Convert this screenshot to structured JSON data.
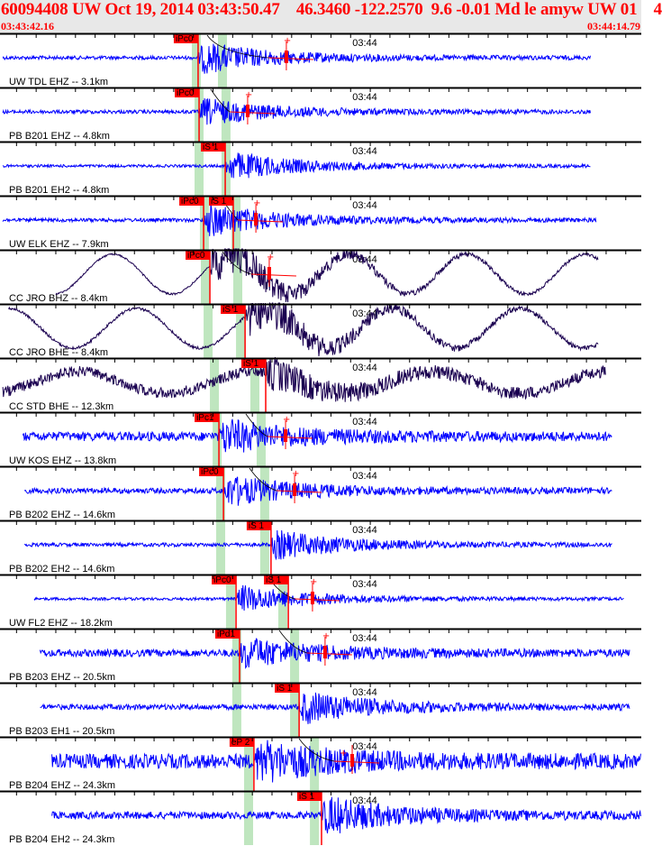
{
  "header": {
    "title": "60094408 UW Oct 19, 2014 03:43:50.47    46.3460 -122.2570  9.6 -0.01 Md le amyw UW 01    4",
    "start_time": "03:43:42.16",
    "end_time": "03:44:14.79"
  },
  "chart_data": {
    "type": "line",
    "title": "",
    "x_unit": "seconds after 03:43:00",
    "xlim": [
      42.16,
      74.79
    ],
    "minute_label": "03:44",
    "minute_label_time": 60.0,
    "colors": {
      "short_period": "#0000ff",
      "broadband": "#1a0050",
      "pick": "#ff0000",
      "window": "#bfe6bf",
      "coda": "#000000"
    },
    "series": [
      {
        "name": "UW TDL EHZ -- 3.1km",
        "kind": "short_period",
        "data_start": 42.3,
        "data_end": 72.2,
        "noise": 2,
        "amp": 14,
        "picks": [
          {
            "label": "iPc0",
            "time": 52.24
          }
        ],
        "windows": [
          51.92,
          53.25
        ],
        "amp_marker": 56.73
      },
      {
        "name": "PB B201 EHZ -- 4.8km",
        "kind": "short_period",
        "data_start": 42.3,
        "data_end": 72.2,
        "noise": 2,
        "amp": 12,
        "picks": [
          {
            "label": "iPc0",
            "time": 52.29
          }
        ],
        "windows": [
          52.06,
          53.43
        ],
        "amp_marker": 54.76
      },
      {
        "name": "PB B201 EH2 -- 4.8km",
        "kind": "short_period",
        "data_start": 42.3,
        "data_end": 72.2,
        "noise": 1.5,
        "amp": 13,
        "picks": [
          {
            "label": "iS 1",
            "time": 53.62
          }
        ],
        "windows": [
          52.06,
          53.43
        ],
        "amp_marker": null
      },
      {
        "name": "UW ELK EHZ -- 7.9km",
        "kind": "short_period",
        "data_start": 42.3,
        "data_end": 72.5,
        "noise": 2,
        "amp": 15,
        "picks": [
          {
            "label": "iPc0",
            "time": 52.52
          },
          {
            "label": "iS 1",
            "time": 54.03
          }
        ],
        "windows": [
          52.33,
          53.94
        ],
        "amp_marker": 55.18
      },
      {
        "name": "CC JRO BHZ -- 8.4km",
        "kind": "broadband",
        "data_start": 45.0,
        "data_end": 72.6,
        "noise": 1,
        "amp": 22,
        "period": 6.0,
        "picks": [
          {
            "label": "iPc0",
            "time": 52.84
          }
        ],
        "windows": [
          52.38,
          54.03
        ],
        "amp_marker": 55.86
      },
      {
        "name": "CC JRO BHE -- 8.4km",
        "kind": "broadband",
        "data_start": 42.6,
        "data_end": 72.6,
        "noise": 1.5,
        "amp": 22,
        "period": 6.5,
        "picks": [
          {
            "label": "iS 1",
            "time": 54.63
          }
        ],
        "windows": [
          52.52,
          54.17
        ],
        "amp_marker": null
      },
      {
        "name": "CC STD BHE -- 12.3km",
        "kind": "broadband",
        "data_start": 42.3,
        "data_end": 73.0,
        "noise": 6,
        "amp": 12,
        "period": 9.0,
        "picks": [
          {
            "label": "iS 1",
            "time": 55.68
          }
        ],
        "windows": [
          52.84,
          54.9
        ],
        "amp_marker": null
      },
      {
        "name": "UW KOS EHZ -- 13.8km",
        "kind": "short_period",
        "data_start": 43.3,
        "data_end": 73.3,
        "noise": 5,
        "amp": 14,
        "picks": [
          {
            "label": "iPc1",
            "time": 53.3
          }
        ],
        "windows": [
          52.98,
          55.22
        ],
        "amp_marker": 56.69
      },
      {
        "name": "PB B202 EHZ -- 14.6km",
        "kind": "short_period",
        "data_start": 43.4,
        "data_end": 73.3,
        "noise": 3,
        "amp": 13,
        "picks": [
          {
            "label": "iPc0",
            "time": 53.53
          }
        ],
        "windows": [
          53.16,
          55.4
        ],
        "amp_marker": 57.15
      },
      {
        "name": "PB B202 EH2 -- 14.6km",
        "kind": "short_period",
        "data_start": 43.4,
        "data_end": 73.3,
        "noise": 2,
        "amp": 13,
        "picks": [
          {
            "label": "iS 1",
            "time": 55.95
          }
        ],
        "windows": [
          53.16,
          55.4
        ],
        "amp_marker": null
      },
      {
        "name": "UW FL2 EHZ -- 18.2km",
        "kind": "short_period",
        "data_start": 43.9,
        "data_end": 73.9,
        "noise": 1.5,
        "amp": 12,
        "picks": [
          {
            "label": "iPc0",
            "time": 54.17
          },
          {
            "label": "iS 1",
            "time": 56.83
          }
        ],
        "windows": [
          53.66,
          56.32
        ],
        "amp_marker": 58.06
      },
      {
        "name": "PB B203 EHZ -- 20.5km",
        "kind": "short_period",
        "data_start": 44.2,
        "data_end": 74.2,
        "noise": 4,
        "amp": 13,
        "picks": [
          {
            "label": "iPd1",
            "time": 54.35
          }
        ],
        "windows": [
          53.98,
          56.92
        ],
        "amp_marker": 58.7
      },
      {
        "name": "PB B203 EH1 -- 20.5km",
        "kind": "short_period",
        "data_start": 44.2,
        "data_end": 74.2,
        "noise": 3,
        "amp": 14,
        "picks": [
          {
            "label": "iS 1",
            "time": 57.38
          }
        ],
        "windows": [
          53.98,
          56.92
        ],
        "amp_marker": null
      },
      {
        "name": "PB B204 EHZ -- 24.3km",
        "kind": "short_period",
        "data_start": 44.8,
        "data_end": 74.79,
        "noise": 8,
        "amp": 16,
        "picks": [
          {
            "label": "eP 2",
            "time": 55.08
          }
        ],
        "windows": [
          54.58,
          57.93
        ],
        "amp_marker": 60.08
      },
      {
        "name": "PB B204 EH2 -- 24.3km",
        "kind": "short_period",
        "data_start": 44.8,
        "data_end": 74.79,
        "noise": 4,
        "amp": 16,
        "picks": [
          {
            "label": "iS 1",
            "time": 58.52
          }
        ],
        "windows": [
          54.58,
          57.93
        ],
        "amp_marker": null
      }
    ]
  }
}
